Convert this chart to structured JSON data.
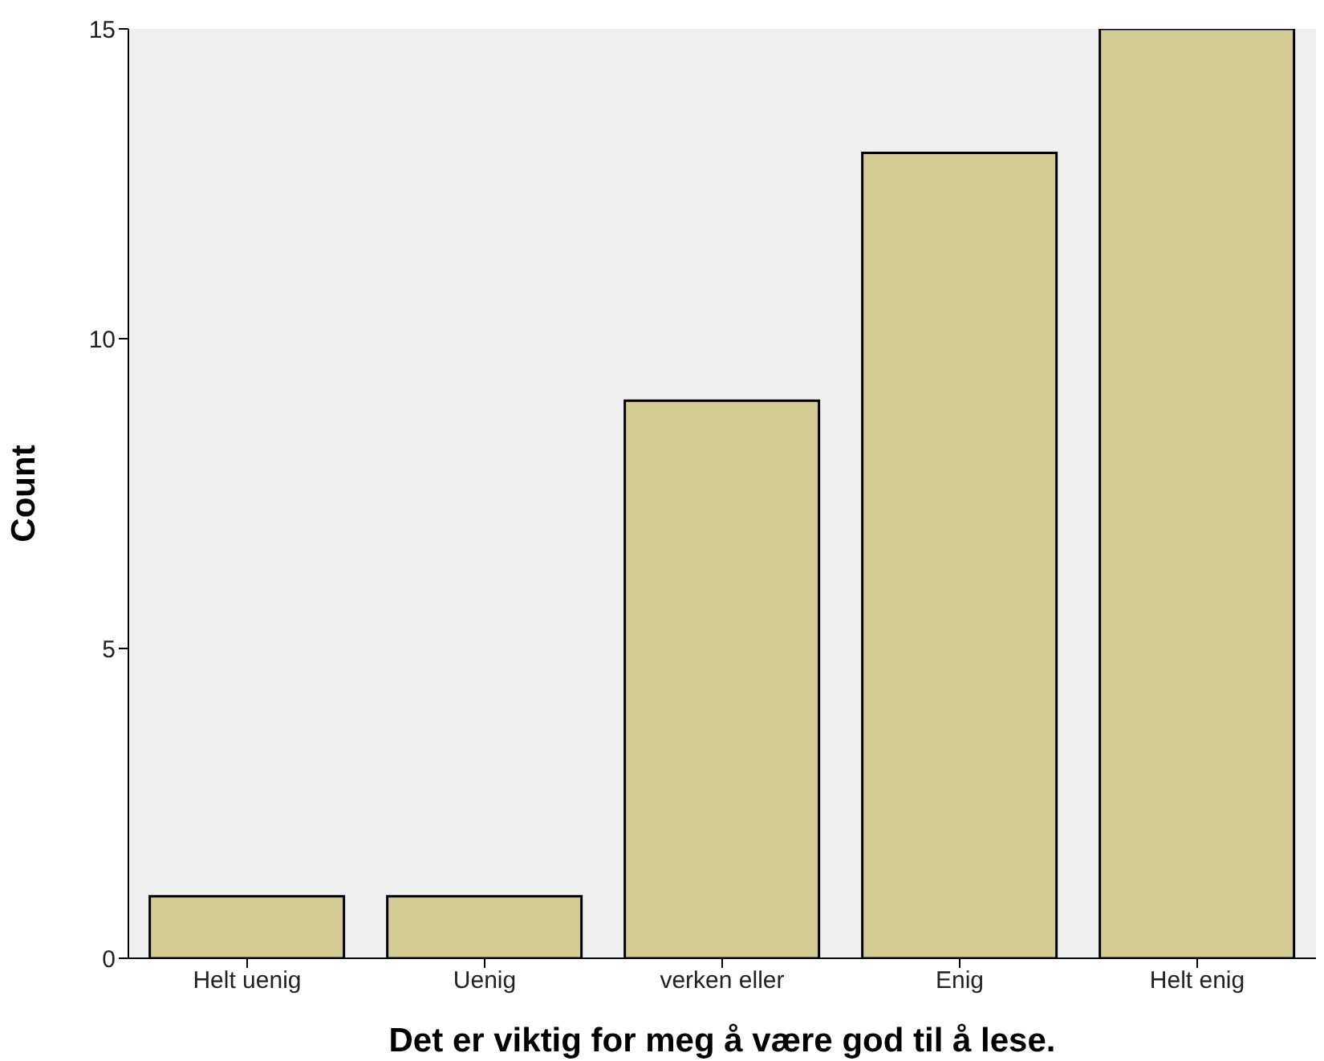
{
  "chart_data": {
    "type": "bar",
    "xlabel": "Det er viktig for meg å være god til å lese.",
    "ylabel": "Count",
    "categories": [
      "Helt uenig",
      "Uenig",
      "verken eller",
      "Enig",
      "Helt enig"
    ],
    "values": [
      1,
      1,
      9,
      13,
      15
    ],
    "color": "#d3cd95",
    "ylim": [
      0,
      15
    ],
    "yticks": [
      0,
      5,
      10,
      15
    ],
    "grid": false
  }
}
